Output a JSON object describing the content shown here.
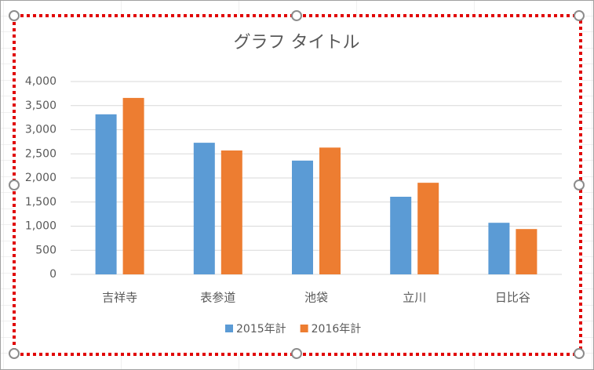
{
  "chart_data": {
    "type": "bar",
    "title": "グラフ タイトル",
    "categories": [
      "吉祥寺",
      "表参道",
      "池袋",
      "立川",
      "日比谷"
    ],
    "series": [
      {
        "name": "2015年計",
        "color": "#5b9bd5",
        "values": [
          3320,
          2730,
          2360,
          1610,
          1070
        ]
      },
      {
        "name": "2016年計",
        "color": "#ed7d31",
        "values": [
          3660,
          2570,
          2630,
          1900,
          940
        ]
      }
    ],
    "ylim": [
      0,
      4000
    ],
    "yticks": [
      0,
      500,
      {
        "value": 1000,
        "label": "1,000"
      },
      {
        "value": 1500,
        "label": "1,500"
      },
      {
        "value": 2000,
        "label": "2,000"
      },
      {
        "value": 2500,
        "label": "2,500"
      },
      {
        "value": 3000,
        "label": "3,000"
      },
      {
        "value": 3500,
        "label": "3,500"
      },
      {
        "value": 4000,
        "label": "4,000"
      }
    ],
    "grid": true,
    "legend": "bottom"
  }
}
